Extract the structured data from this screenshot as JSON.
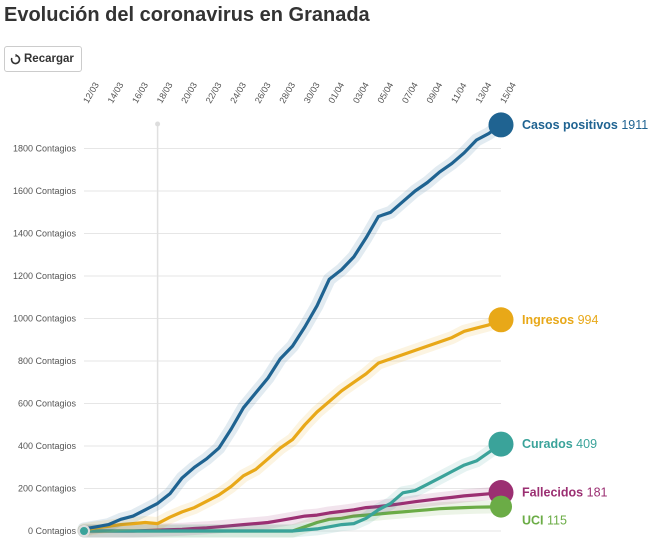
{
  "title": "Evolución del coronavirus en Granada",
  "reload_button": {
    "label": "Recargar",
    "icon": "reload-icon"
  },
  "chart_data": {
    "type": "line",
    "title": "Evolución del coronavirus en Granada",
    "y_suffix": " Contagios",
    "ylim": [
      0,
      1950
    ],
    "yticks": [
      0,
      200,
      400,
      600,
      800,
      1000,
      1200,
      1400,
      1600,
      1800
    ],
    "y_tick_labels": [
      "0 Contagios",
      "200 Contagios",
      "400 Contagios",
      "600 Contagios",
      "800 Contagios",
      "1000 Contagios",
      "1200 Contagios",
      "1400 Contagios",
      "1600 Contagios",
      "1800 Contagios"
    ],
    "x_labels": [
      "12/03",
      "14/03",
      "16/03",
      "18/03",
      "20/03",
      "22/03",
      "24/03",
      "26/03",
      "28/03",
      "30/03",
      "01/04",
      "03/04",
      "05/04",
      "07/04",
      "09/04",
      "11/04",
      "13/04",
      "15/04"
    ],
    "x": [
      "12/03",
      "13/03",
      "14/03",
      "15/03",
      "16/03",
      "17/03",
      "18/03",
      "19/03",
      "20/03",
      "21/03",
      "22/03",
      "23/03",
      "24/03",
      "25/03",
      "26/03",
      "27/03",
      "28/03",
      "29/03",
      "30/03",
      "31/03",
      "01/04",
      "02/04",
      "03/04",
      "04/04",
      "05/04",
      "06/04",
      "07/04",
      "08/04",
      "09/04",
      "10/04",
      "11/04",
      "12/04",
      "13/04",
      "14/04",
      "15/04"
    ],
    "reference_line_x": "18/03",
    "grid": "horizontal",
    "series": [
      {
        "name": "Casos positivos",
        "display_value": "1911",
        "color": "#1f6391",
        "values": [
          10,
          20,
          30,
          55,
          70,
          100,
          130,
          175,
          250,
          300,
          340,
          390,
          480,
          580,
          650,
          720,
          810,
          870,
          960,
          1060,
          1185,
          1230,
          1290,
          1380,
          1480,
          1500,
          1550,
          1600,
          1640,
          1690,
          1730,
          1780,
          1840,
          1870,
          1911
        ]
      },
      {
        "name": "Ingresos",
        "display_value": "994",
        "color": "#e8a818",
        "values": [
          5,
          15,
          22,
          30,
          35,
          40,
          35,
          65,
          90,
          110,
          140,
          170,
          210,
          260,
          290,
          340,
          390,
          430,
          500,
          560,
          610,
          660,
          700,
          740,
          790,
          810,
          830,
          850,
          870,
          890,
          910,
          940,
          955,
          970,
          994
        ]
      },
      {
        "name": "Curados",
        "display_value": "409",
        "color": "#3aa39a",
        "values": [
          0,
          0,
          0,
          0,
          0,
          0,
          0,
          0,
          0,
          0,
          0,
          0,
          0,
          0,
          0,
          0,
          0,
          0,
          5,
          10,
          20,
          30,
          35,
          60,
          100,
          130,
          180,
          190,
          220,
          250,
          280,
          310,
          330,
          370,
          409
        ]
      },
      {
        "name": "Fallecidos",
        "display_value": "181",
        "color": "#9b2f72",
        "values": [
          0,
          0,
          0,
          0,
          0,
          2,
          4,
          6,
          8,
          12,
          15,
          20,
          25,
          30,
          35,
          40,
          50,
          60,
          70,
          75,
          85,
          92,
          100,
          110,
          115,
          122,
          130,
          138,
          145,
          152,
          158,
          165,
          170,
          175,
          181
        ]
      },
      {
        "name": "UCI",
        "display_value": "115",
        "color": "#6bac46",
        "values": [
          0,
          0,
          0,
          0,
          0,
          0,
          0,
          0,
          0,
          0,
          0,
          0,
          0,
          0,
          0,
          0,
          0,
          0,
          20,
          40,
          55,
          60,
          70,
          75,
          80,
          85,
          90,
          95,
          100,
          105,
          108,
          110,
          112,
          113,
          115
        ]
      }
    ]
  }
}
